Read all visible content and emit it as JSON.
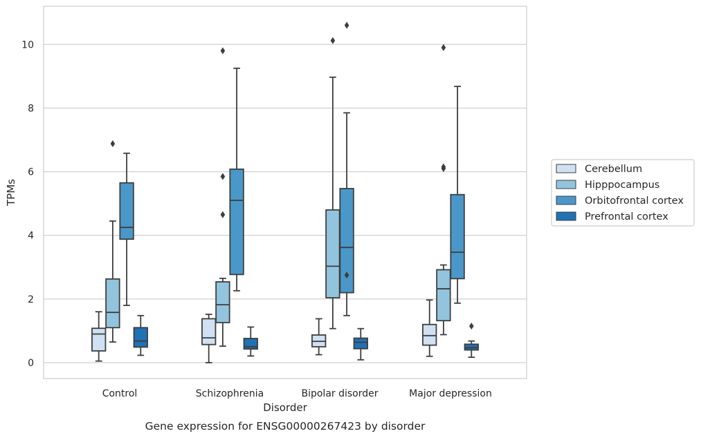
{
  "chart_data": {
    "type": "box",
    "caption": "Gene expression for ENSG00000267423 by disorder",
    "xlabel": "Disorder",
    "ylabel": "TPMs",
    "ylim": [
      -0.5,
      11.2
    ],
    "yticks": [
      0,
      2,
      4,
      6,
      8,
      10
    ],
    "grid": "horizontal",
    "legend_position": "right",
    "categories": [
      "Control",
      "Schizophrenia",
      "Bipolar disorder",
      "Major depression"
    ],
    "series": [
      {
        "name": "Cerebellum",
        "color": "#cfe1f2",
        "boxes": [
          {
            "whislo": 0.05,
            "q1": 0.37,
            "med": 0.9,
            "q3": 1.08,
            "whishi": 1.6,
            "fliers": []
          },
          {
            "whislo": 0.0,
            "q1": 0.57,
            "med": 0.78,
            "q3": 1.38,
            "whishi": 1.52,
            "fliers": []
          },
          {
            "whislo": 0.25,
            "q1": 0.5,
            "med": 0.67,
            "q3": 0.87,
            "whishi": 1.38,
            "fliers": []
          },
          {
            "whislo": 0.2,
            "q1": 0.55,
            "med": 0.85,
            "q3": 1.2,
            "whishi": 1.97,
            "fliers": []
          }
        ]
      },
      {
        "name": "Hipppocampus",
        "color": "#93c4de",
        "boxes": [
          {
            "whislo": 0.65,
            "q1": 1.1,
            "med": 1.58,
            "q3": 2.63,
            "whishi": 4.45,
            "fliers": [
              6.88
            ]
          },
          {
            "whislo": 0.52,
            "q1": 1.26,
            "med": 1.82,
            "q3": 2.54,
            "whishi": 2.65,
            "fliers": [
              4.65,
              5.85,
              9.8
            ]
          },
          {
            "whislo": 1.07,
            "q1": 2.04,
            "med": 3.03,
            "q3": 4.8,
            "whishi": 8.97,
            "fliers": [
              10.12
            ]
          },
          {
            "whislo": 0.88,
            "q1": 1.32,
            "med": 2.32,
            "q3": 2.92,
            "whishi": 3.07,
            "fliers": [
              6.1,
              6.15,
              9.9
            ]
          }
        ]
      },
      {
        "name": "Orbitofrontal cortex",
        "color": "#4a98c9",
        "boxes": [
          {
            "whislo": 1.8,
            "q1": 3.88,
            "med": 4.25,
            "q3": 5.65,
            "whishi": 6.58,
            "fliers": []
          },
          {
            "whislo": 2.26,
            "q1": 2.77,
            "med": 5.1,
            "q3": 6.08,
            "whishi": 9.25,
            "fliers": []
          },
          {
            "whislo": 1.48,
            "q1": 2.2,
            "med": 3.62,
            "q3": 5.47,
            "whishi": 7.85,
            "fliers": [
              2.75,
              10.6
            ]
          },
          {
            "whislo": 1.87,
            "q1": 2.64,
            "med": 3.47,
            "q3": 5.28,
            "whishi": 8.68,
            "fliers": []
          }
        ]
      },
      {
        "name": "Prefrontal cortex",
        "color": "#2171b5",
        "boxes": [
          {
            "whislo": 0.23,
            "q1": 0.49,
            "med": 0.68,
            "q3": 1.1,
            "whishi": 1.48,
            "fliers": []
          },
          {
            "whislo": 0.21,
            "q1": 0.43,
            "med": 0.5,
            "q3": 0.76,
            "whishi": 1.12,
            "fliers": []
          },
          {
            "whislo": 0.09,
            "q1": 0.44,
            "med": 0.64,
            "q3": 0.77,
            "whishi": 1.07,
            "fliers": []
          },
          {
            "whislo": 0.17,
            "q1": 0.4,
            "med": 0.47,
            "q3": 0.58,
            "whishi": 0.68,
            "fliers": [
              1.15
            ]
          }
        ]
      }
    ]
  }
}
